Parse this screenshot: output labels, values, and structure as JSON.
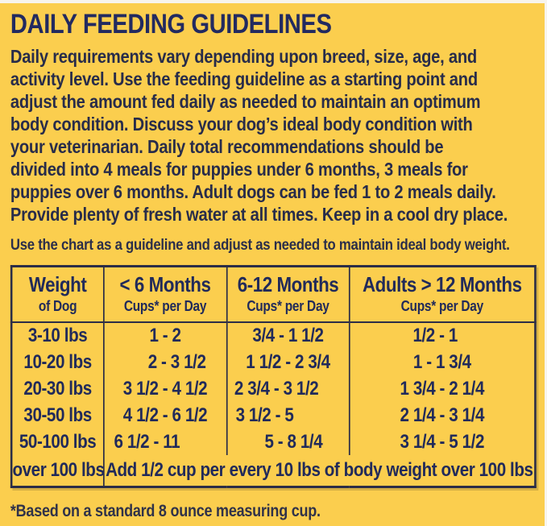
{
  "colors": {
    "background_yellow": "#fbce4e",
    "title_navy": "#222a60",
    "body_navy": "#282c4a",
    "table_navy": "#212a5a",
    "border_navy": "#2b2d47"
  },
  "header": {
    "title": "DAILY FEEDING GUIDELINES"
  },
  "intro": {
    "lines": [
      "Daily requirements vary depending upon breed, size, age, and",
      "activity level. Use the feeding guideline as a starting point and",
      "adjust the amount fed daily as needed to maintain an optimum",
      "body condition. Discuss your dog’s ideal body condition with",
      "your veterinarian. Daily total recommendations should be",
      "divided into 4 meals for puppies under 6 months, 3 meals for",
      "puppies over 6 months. Adult dogs can be fed 1 to 2 meals daily.",
      "Provide plenty of fresh water at all times. Keep in a cool dry place."
    ]
  },
  "note": "Use the chart as a guideline and adjust as needed to maintain ideal body weight.",
  "table": {
    "columns": [
      {
        "title": "Weight",
        "subtitle": "of Dog"
      },
      {
        "title": "< 6 Months",
        "subtitle": "Cups* per Day"
      },
      {
        "title": "6-12 Months",
        "subtitle": "Cups* per Day"
      },
      {
        "title": "Adults > 12 Months",
        "subtitle": "Cups* per Day"
      }
    ],
    "rows": [
      {
        "weight": "3-10 lbs",
        "under_6": "1 - 2",
        "m6_12": "3/4 - 1 1/2",
        "adults": "1/2 - 1"
      },
      {
        "weight": "10-20 lbs",
        "under_6": "2 - 3 1/2",
        "m6_12": "1 1/2 - 2 3/4",
        "adults": "1 - 1 3/4"
      },
      {
        "weight": "20-30 lbs",
        "under_6": "3 1/2 - 4 1/2",
        "m6_12": "2 3/4 - 3 1/2",
        "adults": "1 3/4 - 2 1/4"
      },
      {
        "weight": "30-50 lbs",
        "under_6": "4 1/2 - 6 1/2",
        "m6_12": "3 1/2 - 5",
        "adults": "2 1/4 - 3 1/4"
      },
      {
        "weight": "50-100 lbs",
        "under_6": "6 1/2 - 11",
        "m6_12": "5 - 8 1/4",
        "adults": "3 1/4 - 5 1/2"
      }
    ],
    "footer_row": {
      "weight": "over 100 lbs",
      "note": "Add 1/2 cup per every 10 lbs of body weight over 100 lbs"
    }
  },
  "footnote": "*Based on a standard 8 ounce measuring cup."
}
